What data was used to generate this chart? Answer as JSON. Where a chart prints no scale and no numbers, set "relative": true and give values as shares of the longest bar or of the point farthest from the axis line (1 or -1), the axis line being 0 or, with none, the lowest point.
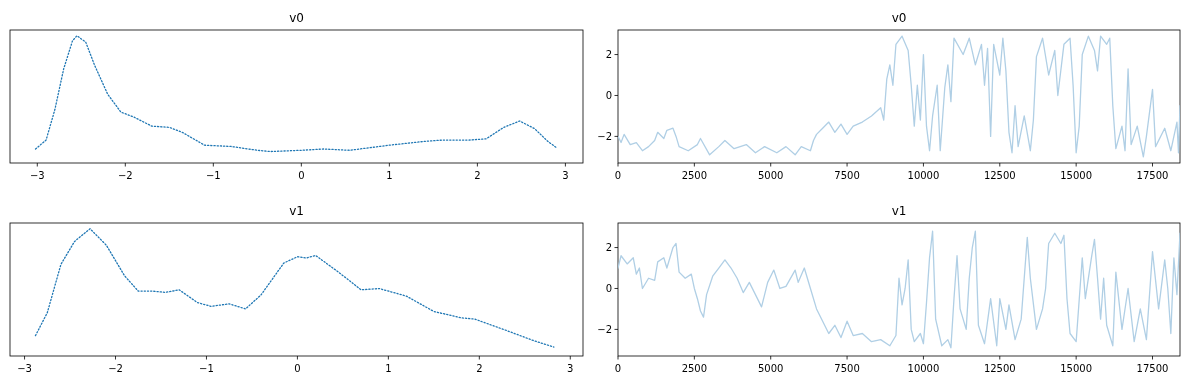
{
  "chart_data": [
    {
      "type": "line",
      "title": "v0",
      "relative": true,
      "line_style": "dotted",
      "tick_labels": "x",
      "xlim": [
        -3.31,
        3.2
      ],
      "xticks": [
        {
          "value": -3,
          "label": "−3"
        },
        {
          "value": -2,
          "label": "−2"
        },
        {
          "value": -1,
          "label": "−1"
        },
        0,
        1,
        2,
        3
      ],
      "x": [
        -3.02,
        -2.9,
        -2.8,
        -2.7,
        -2.6,
        -2.55,
        -2.45,
        -2.35,
        -2.2,
        -2.05,
        -1.9,
        -1.7,
        -1.5,
        -1.35,
        -1.1,
        -0.8,
        -0.5,
        -0.35,
        0,
        0.25,
        0.55,
        1,
        1.4,
        1.6,
        1.9,
        2.1,
        2.3,
        2.48,
        2.65,
        2.8,
        2.9
      ],
      "series": [
        {
          "color": "#1f77b4",
          "values": [
            0.11,
            0.18,
            0.42,
            0.74,
            0.96,
            1,
            0.95,
            0.77,
            0.54,
            0.4,
            0.36,
            0.29,
            0.28,
            0.24,
            0.14,
            0.13,
            0.1,
            0.09,
            0.1,
            0.11,
            0.1,
            0.14,
            0.17,
            0.18,
            0.18,
            0.19,
            0.28,
            0.33,
            0.27,
            0.17,
            0.12
          ]
        }
      ]
    },
    {
      "type": "line",
      "title": "v0",
      "line_style": "solid",
      "xlim": [
        0,
        18400
      ],
      "xticks": [
        0,
        2500,
        5000,
        7500,
        10000,
        12500,
        15000,
        17500
      ],
      "ylim": [
        -3.3,
        3.2
      ],
      "yticks": [
        {
          "value": -2,
          "label": "−2"
        },
        {
          "value": 0,
          "label": "0"
        },
        {
          "value": 2,
          "label": "2"
        }
      ],
      "x": [
        0,
        100,
        200,
        400,
        600,
        800,
        1000,
        1200,
        1300,
        1500,
        1600,
        1800,
        1900,
        2000,
        2300,
        2600,
        2700,
        3000,
        3300,
        3500,
        3800,
        4200,
        4500,
        4800,
        5200,
        5500,
        5800,
        6000,
        6300,
        6400,
        6500,
        6700,
        6900,
        7100,
        7300,
        7500,
        7700,
        8000,
        8300,
        8600,
        8700,
        8800,
        8900,
        9000,
        9100,
        9300,
        9500,
        9600,
        9700,
        9800,
        9900,
        10000,
        10100,
        10200,
        10300,
        10450,
        10550,
        10700,
        10800,
        10900,
        11000,
        11300,
        11500,
        11700,
        11900,
        12000,
        12100,
        12200,
        12300,
        12500,
        12600,
        12700,
        12800,
        12900,
        13000,
        13100,
        13300,
        13500,
        13600,
        13700,
        13900,
        14100,
        14300,
        14400,
        14600,
        14800,
        14900,
        15000,
        15100,
        15200,
        15400,
        15600,
        15700,
        15800,
        16000,
        16100,
        16200,
        16300,
        16500,
        16600,
        16700,
        16800,
        17000,
        17200,
        17300,
        17500,
        17600,
        17900,
        18100,
        18300,
        18350,
        18400
      ],
      "series": [
        {
          "color": "#b0cfe5",
          "values": [
            -2.0,
            -2.3,
            -1.9,
            -2.4,
            -2.3,
            -2.7,
            -2.5,
            -2.2,
            -1.8,
            -2.1,
            -1.7,
            -1.6,
            -2.0,
            -2.5,
            -2.7,
            -2.4,
            -2.1,
            -2.9,
            -2.5,
            -2.2,
            -2.6,
            -2.4,
            -2.8,
            -2.5,
            -2.8,
            -2.5,
            -2.9,
            -2.5,
            -2.7,
            -2.2,
            -1.9,
            -1.6,
            -1.3,
            -1.8,
            -1.4,
            -1.9,
            -1.5,
            -1.3,
            -1.0,
            -0.6,
            -1.2,
            0.8,
            1.5,
            0.5,
            2.5,
            2.9,
            2.2,
            0.5,
            -1.5,
            0.5,
            -1.2,
            2.0,
            -1.5,
            -2.7,
            -1.0,
            0.5,
            -2.7,
            0.4,
            1.5,
            -0.3,
            2.8,
            2.0,
            2.8,
            1.5,
            2.5,
            0.5,
            2.3,
            -2.0,
            2.5,
            1.0,
            2.8,
            1.2,
            -1.8,
            -2.8,
            -0.5,
            -2.5,
            -1.0,
            -2.7,
            -1.2,
            1.9,
            2.8,
            1.0,
            2.2,
            0.0,
            2.5,
            2.8,
            0.5,
            -2.8,
            -1.5,
            2.0,
            2.9,
            2.2,
            1.2,
            2.9,
            2.5,
            2.8,
            -0.5,
            -2.6,
            -1.5,
            -2.7,
            1.3,
            -2.4,
            -1.5,
            -3.0,
            -2.0,
            0.3,
            -2.5,
            -1.6,
            -2.7,
            -1.3,
            -2.8,
            -0.5
          ]
        }
      ]
    },
    {
      "type": "line",
      "title": "v1",
      "relative": true,
      "line_style": "dotted",
      "tick_labels": "x",
      "xlim": [
        -3.16,
        3.14
      ],
      "xticks": [
        {
          "value": -3,
          "label": "−3"
        },
        {
          "value": -2,
          "label": "−2"
        },
        {
          "value": -1,
          "label": "−1"
        },
        0,
        1,
        2,
        3
      ],
      "x": [
        -2.88,
        -2.75,
        -2.6,
        -2.45,
        -2.28,
        -2.1,
        -1.9,
        -1.75,
        -1.6,
        -1.45,
        -1.3,
        -1.1,
        -0.95,
        -0.75,
        -0.57,
        -0.4,
        -0.15,
        0,
        0.1,
        0.2,
        0.45,
        0.7,
        0.9,
        1.2,
        1.5,
        1.8,
        1.95,
        2.3,
        2.6,
        2.82
      ],
      "series": [
        {
          "color": "#1f77b4",
          "values": [
            0.16,
            0.34,
            0.72,
            0.9,
            1,
            0.87,
            0.63,
            0.51,
            0.51,
            0.5,
            0.52,
            0.42,
            0.39,
            0.41,
            0.37,
            0.48,
            0.73,
            0.78,
            0.77,
            0.79,
            0.66,
            0.52,
            0.53,
            0.47,
            0.35,
            0.3,
            0.29,
            0.2,
            0.12,
            0.07
          ]
        }
      ]
    },
    {
      "type": "line",
      "title": "v1",
      "line_style": "solid",
      "xlim": [
        0,
        18400
      ],
      "xticks": [
        0,
        2500,
        5000,
        7500,
        10000,
        12500,
        15000,
        17500
      ],
      "ylim": [
        -3.3,
        3.2
      ],
      "yticks": [
        {
          "value": -2,
          "label": "−2"
        },
        {
          "value": 0,
          "label": "0"
        },
        {
          "value": 2,
          "label": "2"
        }
      ],
      "x": [
        0,
        100,
        300,
        500,
        600,
        700,
        800,
        1000,
        1200,
        1300,
        1500,
        1600,
        1800,
        1900,
        2000,
        2200,
        2400,
        2500,
        2600,
        2700,
        2800,
        2900,
        3100,
        3300,
        3500,
        3700,
        3900,
        4100,
        4300,
        4500,
        4700,
        4900,
        5100,
        5300,
        5500,
        5800,
        5900,
        6100,
        6300,
        6500,
        6700,
        6900,
        7100,
        7300,
        7500,
        7700,
        8000,
        8300,
        8600,
        8900,
        9100,
        9200,
        9300,
        9400,
        9500,
        9600,
        9700,
        9900,
        10000,
        10100,
        10200,
        10300,
        10400,
        10600,
        10800,
        10900,
        11000,
        11100,
        11200,
        11400,
        11500,
        11600,
        11700,
        11800,
        12000,
        12200,
        12400,
        12500,
        12700,
        12800,
        13000,
        13200,
        13400,
        13500,
        13700,
        13900,
        14000,
        14100,
        14300,
        14500,
        14600,
        14700,
        14800,
        15000,
        15200,
        15300,
        15500,
        15600,
        15700,
        15800,
        15900,
        16000,
        16200,
        16300,
        16500,
        16700,
        16900,
        17100,
        17300,
        17500,
        17700,
        17900,
        18000,
        18100,
        18200,
        18300,
        18400
      ],
      "series": [
        {
          "color": "#b0cfe5",
          "values": [
            1.0,
            1.6,
            1.2,
            1.5,
            0.7,
            1.0,
            0.0,
            0.5,
            0.4,
            1.3,
            1.5,
            1.0,
            2.0,
            2.2,
            0.8,
            0.5,
            0.7,
            0.0,
            -0.5,
            -1.1,
            -1.4,
            -0.3,
            0.6,
            1.0,
            1.4,
            1.0,
            0.5,
            -0.2,
            0.3,
            -0.3,
            -0.9,
            0.3,
            0.9,
            0.0,
            0.1,
            0.9,
            0.3,
            1.0,
            0.0,
            -1.0,
            -1.6,
            -2.2,
            -1.8,
            -2.4,
            -1.6,
            -2.3,
            -2.2,
            -2.6,
            -2.5,
            -2.8,
            -2.3,
            0.5,
            -0.8,
            0.0,
            1.4,
            -2.0,
            -2.6,
            -2.2,
            -2.7,
            -0.7,
            1.5,
            2.8,
            -1.5,
            -2.8,
            -2.5,
            -2.9,
            -0.5,
            1.6,
            -1.0,
            -2.0,
            0.5,
            2.0,
            2.8,
            -1.8,
            -2.7,
            -0.5,
            -2.8,
            -0.5,
            -2.0,
            -0.8,
            -2.5,
            -1.5,
            2.5,
            0.5,
            -2.0,
            -1.0,
            0.0,
            2.2,
            2.7,
            2.2,
            2.6,
            -0.5,
            -2.2,
            -2.6,
            1.5,
            -0.5,
            1.5,
            2.4,
            0.5,
            -1.5,
            0.5,
            -1.8,
            -2.8,
            0.8,
            -2.0,
            0.0,
            -2.6,
            -1.0,
            -2.5,
            1.8,
            -1.0,
            1.4,
            0.0,
            -2.2,
            1.5,
            -0.3,
            2.7
          ]
        }
      ]
    }
  ]
}
